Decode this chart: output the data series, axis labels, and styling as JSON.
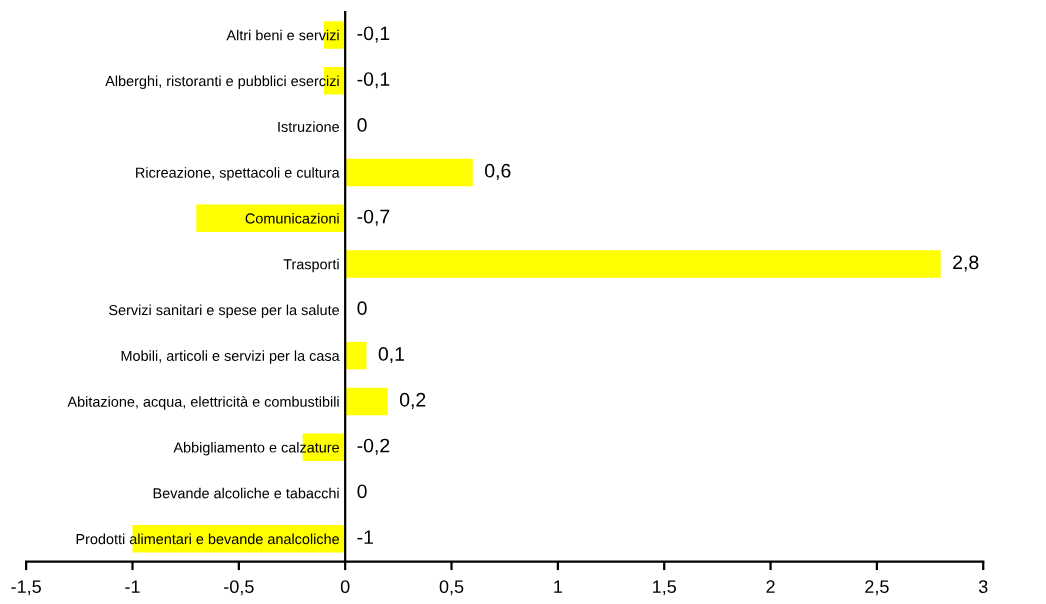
{
  "chart_data": {
    "type": "bar",
    "orientation": "horizontal",
    "categories": [
      "Altri beni e servizi",
      "Alberghi, ristoranti e pubblici esercizi",
      "Istruzione",
      "Ricreazione, spettacoli e cultura",
      "Comunicazioni",
      "Trasporti",
      "Servizi sanitari e spese per la salute",
      "Mobili, articoli e servizi per la casa",
      "Abitazione, acqua, elettricità e combustibili",
      "Abbigliamento e calzature",
      "Bevande alcoliche e tabacchi",
      "Prodotti alimentari e bevande analcoliche"
    ],
    "values": [
      -0.1,
      -0.1,
      0,
      0.6,
      -0.7,
      2.8,
      0,
      0.1,
      0.2,
      -0.2,
      0,
      -1
    ],
    "value_labels": [
      "-0,1",
      "-0,1",
      "0",
      "0,6",
      "-0,7",
      "2,8",
      "0",
      "0,1",
      "0,2",
      "-0,2",
      "0",
      "-1"
    ],
    "color": "#ffff00",
    "xlim": [
      -1.5,
      3
    ],
    "xticks": [
      {
        "value": -1.5,
        "label": "-1,5"
      },
      -1,
      {
        "value": -0.5,
        "label": "-0,5"
      },
      0,
      {
        "value": 0.5,
        "label": "0,5"
      },
      1,
      {
        "value": 1.5,
        "label": "1,5"
      },
      2,
      {
        "value": 2.5,
        "label": "2,5"
      },
      3
    ],
    "grid": false,
    "legend": false
  }
}
